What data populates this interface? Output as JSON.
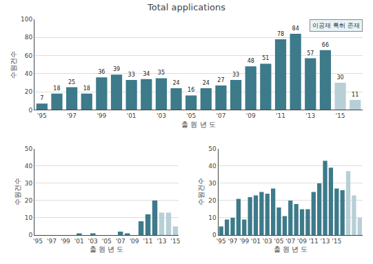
{
  "chart_data": [
    {
      "type": "bar",
      "title": "Total applications",
      "annotation": "이공재 특허 존재",
      "xlabel": "출 원 년 도",
      "ylabel": "수원건수",
      "categories": [
        "'95",
        null,
        "'97",
        null,
        "'99",
        null,
        "'01",
        null,
        "'03",
        null,
        "'05",
        null,
        "'07",
        null,
        "'09",
        null,
        "'11",
        null,
        "'13",
        null,
        "'15",
        null
      ],
      "values": [
        7,
        18,
        25,
        18,
        36,
        39,
        33,
        34,
        35,
        24,
        16,
        24,
        27,
        33,
        48,
        51,
        78,
        84,
        57,
        66,
        30,
        11
      ],
      "colors": [
        "#3d7a8a",
        "#3d7a8a",
        "#3d7a8a",
        "#3d7a8a",
        "#3d7a8a",
        "#3d7a8a",
        "#3d7a8a",
        "#3d7a8a",
        "#3d7a8a",
        "#3d7a8a",
        "#3d7a8a",
        "#3d7a8a",
        "#3d7a8a",
        "#3d7a8a",
        "#3d7a8a",
        "#3d7a8a",
        "#3d7a8a",
        "#3d7a8a",
        "#3d7a8a",
        "#3d7a8a",
        "#b8cfd6",
        "#b8cfd6"
      ],
      "ylim": [
        0,
        100
      ],
      "yticks": [
        0,
        20,
        40,
        60,
        80,
        100
      ],
      "grid": true,
      "data_labels": true
    },
    {
      "type": "bar",
      "xlabel": "출 원 년 도",
      "ylabel": "수원건수",
      "categories": [
        "'95",
        null,
        "'97",
        null,
        "'99",
        null,
        "'01",
        null,
        "'03",
        null,
        "'05",
        null,
        "'07",
        null,
        "'09",
        null,
        "'11",
        null,
        "'13",
        null,
        "'15"
      ],
      "values": [
        0,
        0,
        0,
        0,
        0,
        0,
        1,
        0,
        1,
        0,
        0,
        0,
        2,
        1,
        0,
        8,
        12,
        20,
        13,
        13,
        5
      ],
      "colors": [
        "#3d7a8a",
        "#3d7a8a",
        "#3d7a8a",
        "#3d7a8a",
        "#3d7a8a",
        "#3d7a8a",
        "#3d7a8a",
        "#3d7a8a",
        "#3d7a8a",
        "#3d7a8a",
        "#3d7a8a",
        "#3d7a8a",
        "#3d7a8a",
        "#3d7a8a",
        "#3d7a8a",
        "#3d7a8a",
        "#3d7a8a",
        "#3d7a8a",
        "#b8cfd6",
        "#b8cfd6",
        "#b8cfd6"
      ],
      "ylim": [
        0,
        50
      ],
      "yticks": [
        0,
        10,
        20,
        30,
        40,
        50
      ],
      "grid": true,
      "data_labels": false
    },
    {
      "type": "bar",
      "xlabel": "출 원 년 도",
      "ylabel": "수원건수",
      "categories": [
        "'95",
        null,
        "'97",
        null,
        "'99",
        null,
        "'01",
        null,
        "'03",
        null,
        "'05",
        null,
        "'07",
        null,
        "'09",
        null,
        "'11",
        null,
        "'13",
        null,
        "'15",
        null,
        null,
        null,
        null
      ],
      "values": [
        5,
        9,
        10,
        21,
        9,
        22,
        23,
        25,
        24,
        27,
        16,
        11,
        20,
        18,
        15,
        15,
        25,
        30,
        43,
        39,
        27,
        26,
        37,
        23,
        10
      ],
      "colors": [
        "#3d7a8a",
        "#3d7a8a",
        "#3d7a8a",
        "#3d7a8a",
        "#3d7a8a",
        "#3d7a8a",
        "#3d7a8a",
        "#3d7a8a",
        "#3d7a8a",
        "#3d7a8a",
        "#3d7a8a",
        "#3d7a8a",
        "#3d7a8a",
        "#3d7a8a",
        "#3d7a8a",
        "#3d7a8a",
        "#3d7a8a",
        "#3d7a8a",
        "#3d7a8a",
        "#3d7a8a",
        "#3d7a8a",
        "#3d7a8a",
        "#b8cfd6",
        "#b8cfd6",
        "#b8cfd6"
      ],
      "ylim": [
        0,
        50
      ],
      "yticks": [
        0,
        10,
        20,
        30,
        40,
        50
      ],
      "grid": true,
      "data_labels": false
    }
  ]
}
